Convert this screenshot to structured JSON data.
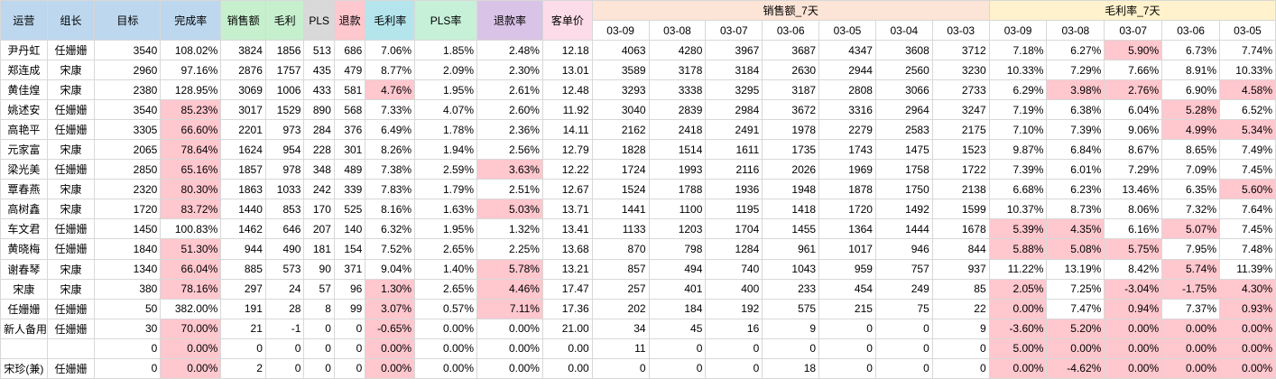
{
  "headers": {
    "ops": "运营",
    "leader": "组长",
    "target": "目标",
    "completion": "完成率",
    "sales": "销售额",
    "gross": "毛利",
    "pls": "PLS",
    "refund": "退款",
    "gross_rate": "毛利率",
    "pls_rate": "PLS率",
    "refund_rate": "退款率",
    "avg_order": "客单价",
    "sales7_group": "销售额_7天",
    "gross7_group": "毛利率_7天"
  },
  "sales_dates": [
    "03-09",
    "03-08",
    "03-07",
    "03-06",
    "03-05",
    "03-04",
    "03-03"
  ],
  "gross_dates": [
    "03-09",
    "03-08",
    "03-07",
    "03-06",
    "03-05"
  ],
  "rows": [
    {
      "c": [
        "尹丹虹",
        "任姗姗",
        "3540",
        "108.02%",
        "3824",
        "1856",
        "513",
        "686",
        "7.06%",
        "1.85%",
        "2.48%",
        "12.18",
        "4063",
        "4280",
        "3967",
        "3687",
        "4347",
        "3608",
        "3712",
        "7.18%",
        "6.27%",
        "5.90%",
        "6.73%",
        "7.74%"
      ],
      "h": [
        21
      ]
    },
    {
      "c": [
        "郑连成",
        "宋康",
        "2960",
        "97.16%",
        "2876",
        "1757",
        "435",
        "479",
        "8.77%",
        "2.09%",
        "2.30%",
        "13.01",
        "3589",
        "3178",
        "3184",
        "2630",
        "2944",
        "2560",
        "3230",
        "10.33%",
        "7.29%",
        "7.66%",
        "8.91%",
        "10.33%"
      ],
      "h": []
    },
    {
      "c": [
        "黄佳煌",
        "宋康",
        "2380",
        "128.95%",
        "3069",
        "1006",
        "433",
        "581",
        "4.76%",
        "1.95%",
        "2.61%",
        "12.48",
        "3293",
        "3338",
        "3295",
        "3187",
        "2808",
        "3066",
        "2733",
        "6.29%",
        "3.98%",
        "2.76%",
        "6.90%",
        "4.58%"
      ],
      "h": [
        8,
        20,
        21,
        23
      ]
    },
    {
      "c": [
        "姚述安",
        "任姗姗",
        "3540",
        "85.23%",
        "3017",
        "1529",
        "890",
        "568",
        "7.33%",
        "4.07%",
        "2.60%",
        "11.92",
        "3040",
        "2839",
        "2984",
        "3672",
        "3316",
        "2964",
        "3247",
        "7.19%",
        "6.38%",
        "6.04%",
        "5.28%",
        "6.52%"
      ],
      "h": [
        3,
        22
      ]
    },
    {
      "c": [
        "高艳平",
        "任姗姗",
        "3305",
        "66.60%",
        "2201",
        "973",
        "284",
        "376",
        "6.49%",
        "1.78%",
        "2.36%",
        "14.11",
        "2162",
        "2418",
        "2491",
        "1978",
        "2279",
        "2583",
        "2175",
        "7.10%",
        "7.39%",
        "9.06%",
        "4.99%",
        "5.34%"
      ],
      "h": [
        3,
        22,
        23
      ]
    },
    {
      "c": [
        "元家富",
        "宋康",
        "2065",
        "78.64%",
        "1624",
        "954",
        "228",
        "301",
        "8.26%",
        "1.94%",
        "2.56%",
        "12.79",
        "1828",
        "1514",
        "1611",
        "1735",
        "1743",
        "1475",
        "1523",
        "9.87%",
        "6.84%",
        "8.67%",
        "8.65%",
        "7.49%"
      ],
      "h": [
        3
      ]
    },
    {
      "c": [
        "梁光美",
        "任姗姗",
        "2850",
        "65.16%",
        "1857",
        "978",
        "348",
        "489",
        "7.38%",
        "2.59%",
        "3.63%",
        "12.22",
        "1724",
        "1993",
        "2116",
        "2026",
        "1969",
        "1758",
        "1722",
        "7.39%",
        "6.01%",
        "7.29%",
        "7.09%",
        "7.45%"
      ],
      "h": [
        3,
        10
      ]
    },
    {
      "c": [
        "覃春燕",
        "宋康",
        "2320",
        "80.30%",
        "1863",
        "1033",
        "242",
        "339",
        "7.83%",
        "1.79%",
        "2.51%",
        "12.67",
        "1524",
        "1788",
        "1936",
        "1948",
        "1878",
        "1750",
        "2138",
        "6.68%",
        "6.23%",
        "13.46%",
        "6.35%",
        "5.60%"
      ],
      "h": [
        3,
        23
      ]
    },
    {
      "c": [
        "高树鑫",
        "宋康",
        "1720",
        "83.72%",
        "1440",
        "853",
        "170",
        "525",
        "8.16%",
        "1.63%",
        "5.03%",
        "13.71",
        "1441",
        "1100",
        "1195",
        "1418",
        "1720",
        "1492",
        "1599",
        "10.37%",
        "8.73%",
        "8.06%",
        "7.32%",
        "7.64%"
      ],
      "h": [
        3,
        10
      ]
    },
    {
      "c": [
        "车文君",
        "任姗姗",
        "1450",
        "100.83%",
        "1462",
        "646",
        "207",
        "140",
        "6.32%",
        "1.95%",
        "1.32%",
        "13.41",
        "1133",
        "1203",
        "1704",
        "1455",
        "1364",
        "1444",
        "1678",
        "5.39%",
        "4.35%",
        "6.16%",
        "5.07%",
        "7.45%"
      ],
      "h": [
        19,
        20,
        22
      ]
    },
    {
      "c": [
        "黄晓梅",
        "任姗姗",
        "1840",
        "51.30%",
        "944",
        "490",
        "181",
        "154",
        "7.52%",
        "2.65%",
        "2.25%",
        "13.68",
        "870",
        "798",
        "1284",
        "961",
        "1017",
        "946",
        "844",
        "5.88%",
        "5.08%",
        "5.75%",
        "7.95%",
        "7.48%"
      ],
      "h": [
        3,
        19,
        20,
        21
      ]
    },
    {
      "c": [
        "谢春琴",
        "宋康",
        "1340",
        "66.04%",
        "885",
        "573",
        "90",
        "371",
        "9.04%",
        "1.40%",
        "5.78%",
        "13.21",
        "857",
        "494",
        "740",
        "1043",
        "959",
        "757",
        "937",
        "11.22%",
        "13.19%",
        "8.42%",
        "5.74%",
        "11.39%"
      ],
      "h": [
        3,
        10,
        22
      ]
    },
    {
      "c": [
        "宋康",
        "宋康",
        "380",
        "78.16%",
        "297",
        "24",
        "57",
        "96",
        "1.30%",
        "2.65%",
        "4.46%",
        "17.47",
        "257",
        "401",
        "400",
        "233",
        "454",
        "249",
        "85",
        "2.05%",
        "7.25%",
        "-3.04%",
        "-1.75%",
        "4.30%"
      ],
      "h": [
        3,
        8,
        10,
        19,
        21,
        22,
        23
      ]
    },
    {
      "c": [
        "任姗姗",
        "任姗姗",
        "50",
        "382.00%",
        "191",
        "28",
        "8",
        "99",
        "3.07%",
        "0.57%",
        "7.11%",
        "17.36",
        "202",
        "184",
        "192",
        "575",
        "215",
        "75",
        "22",
        "0.00%",
        "7.47%",
        "0.94%",
        "7.37%",
        "0.93%"
      ],
      "h": [
        8,
        10,
        19,
        21,
        23
      ]
    },
    {
      "c": [
        "新人备用",
        "任姗姗",
        "30",
        "70.00%",
        "21",
        "-1",
        "0",
        "0",
        "-0.65%",
        "0.00%",
        "0.00%",
        "21.00",
        "34",
        "45",
        "16",
        "9",
        "0",
        "0",
        "9",
        "-3.60%",
        "5.20%",
        "0.00%",
        "0.00%",
        "0.00%"
      ],
      "h": [
        3,
        8,
        19,
        20,
        21,
        22,
        23
      ]
    },
    {
      "c": [
        "",
        "",
        "0",
        "0.00%",
        "0",
        "0",
        "0",
        "0",
        "0.00%",
        "0.00%",
        "0.00%",
        "0.00",
        "11",
        "0",
        "0",
        "0",
        "0",
        "0",
        "0",
        "5.00%",
        "0.00%",
        "0.00%",
        "0.00%",
        "0.00%"
      ],
      "h": [
        3,
        8,
        19,
        20,
        21,
        22,
        23
      ]
    },
    {
      "c": [
        "宋珍(兼)",
        "任姗姗",
        "0",
        "0.00%",
        "2",
        "0",
        "0",
        "0",
        "0.00%",
        "0.00%",
        "0.00%",
        "0.00",
        "0",
        "0",
        "0",
        "18",
        "0",
        "0",
        "0",
        "0.00%",
        "-4.62%",
        "0.00%",
        "0.00%",
        "0.00%"
      ],
      "h": [
        3,
        8,
        19,
        20,
        21,
        22,
        23
      ]
    }
  ]
}
